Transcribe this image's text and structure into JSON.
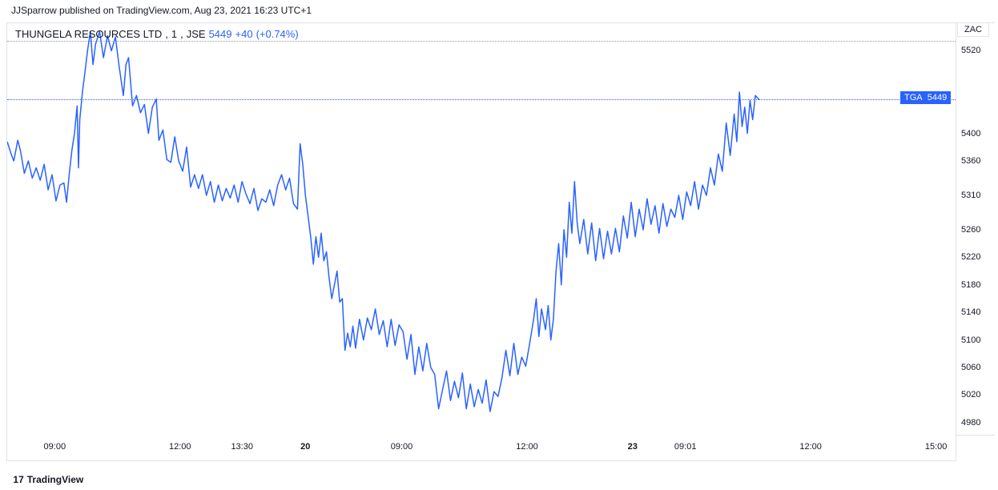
{
  "header": {
    "text": "JJSparrow published on TradingView.com, Aug 23, 2021 16:23 UTC+1"
  },
  "legend": {
    "symbol": "THUNGELA RESOURCES LTD",
    "interval": "1",
    "exchange": "JSE",
    "price": "5449",
    "change": "+40",
    "change_pct": "(+0.74%)"
  },
  "currency_label": "ZAC",
  "price_tag": {
    "ticker": "TGA",
    "value": "5449"
  },
  "attribution": {
    "brand": "TradingView"
  },
  "chart": {
    "type": "line",
    "line_color": "#2962ff",
    "line_width": 1.5,
    "background_color": "#ffffff",
    "border_color": "#e0e3eb",
    "dotted_color": "#9598a1",
    "price_line_color": "#2962ff",
    "ylim": [
      4960,
      5560
    ],
    "xlim": [
      0,
      570
    ],
    "current_price": 5449,
    "y_ticks": [
      4980,
      5020,
      5060,
      5100,
      5140,
      5180,
      5220,
      5260,
      5310,
      5360,
      5400,
      5449,
      5520
    ],
    "x_ticks": [
      {
        "pos": 36,
        "label": "09:00",
        "bold": false
      },
      {
        "pos": 131,
        "label": "12:00",
        "bold": false
      },
      {
        "pos": 178,
        "label": "13:30",
        "bold": false
      },
      {
        "pos": 226,
        "label": "20",
        "bold": true
      },
      {
        "pos": 299,
        "label": "09:00",
        "bold": false
      },
      {
        "pos": 394,
        "label": "12:00",
        "bold": false
      },
      {
        "pos": 474,
        "label": "23",
        "bold": true
      },
      {
        "pos": 514,
        "label": "09:01",
        "bold": false
      },
      {
        "pos": 609,
        "label": "12:00",
        "bold": false
      },
      {
        "pos": 704,
        "label": "15:00",
        "bold": false
      }
    ],
    "series": [
      [
        0,
        5388
      ],
      [
        3,
        5370
      ],
      [
        5,
        5360
      ],
      [
        8,
        5390
      ],
      [
        10,
        5375
      ],
      [
        13,
        5342
      ],
      [
        16,
        5360
      ],
      [
        19,
        5335
      ],
      [
        22,
        5350
      ],
      [
        25,
        5332
      ],
      [
        28,
        5355
      ],
      [
        31,
        5318
      ],
      [
        34,
        5340
      ],
      [
        37,
        5302
      ],
      [
        40,
        5325
      ],
      [
        43,
        5328
      ],
      [
        45,
        5300
      ],
      [
        47,
        5340
      ],
      [
        49,
        5375
      ],
      [
        51,
        5400
      ],
      [
        53,
        5440
      ],
      [
        54,
        5350
      ],
      [
        55,
        5420
      ],
      [
        57,
        5460
      ],
      [
        59,
        5490
      ],
      [
        61,
        5522
      ],
      [
        63,
        5548
      ],
      [
        65,
        5500
      ],
      [
        67,
        5530
      ],
      [
        70,
        5548
      ],
      [
        73,
        5510
      ],
      [
        76,
        5542
      ],
      [
        79,
        5520
      ],
      [
        82,
        5540
      ],
      [
        85,
        5495
      ],
      [
        88,
        5455
      ],
      [
        90,
        5500
      ],
      [
        92,
        5510
      ],
      [
        95,
        5440
      ],
      [
        98,
        5455
      ],
      [
        101,
        5430
      ],
      [
        104,
        5442
      ],
      [
        107,
        5400
      ],
      [
        110,
        5438
      ],
      [
        113,
        5450
      ],
      [
        115,
        5390
      ],
      [
        118,
        5405
      ],
      [
        121,
        5362
      ],
      [
        124,
        5358
      ],
      [
        127,
        5395
      ],
      [
        130,
        5360
      ],
      [
        133,
        5345
      ],
      [
        136,
        5380
      ],
      [
        139,
        5322
      ],
      [
        142,
        5340
      ],
      [
        145,
        5320
      ],
      [
        148,
        5340
      ],
      [
        151,
        5310
      ],
      [
        154,
        5330
      ],
      [
        157,
        5300
      ],
      [
        160,
        5325
      ],
      [
        163,
        5302
      ],
      [
        166,
        5320
      ],
      [
        169,
        5306
      ],
      [
        172,
        5325
      ],
      [
        175,
        5300
      ],
      [
        178,
        5330
      ],
      [
        181,
        5312
      ],
      [
        184,
        5298
      ],
      [
        187,
        5320
      ],
      [
        190,
        5288
      ],
      [
        193,
        5305
      ],
      [
        196,
        5300
      ],
      [
        199,
        5318
      ],
      [
        202,
        5295
      ],
      [
        205,
        5325
      ],
      [
        208,
        5340
      ],
      [
        211,
        5318
      ],
      [
        214,
        5335
      ],
      [
        217,
        5298
      ],
      [
        220,
        5290
      ],
      [
        222,
        5385
      ],
      [
        224,
        5355
      ],
      [
        226,
        5310
      ],
      [
        228,
        5280
      ],
      [
        230,
        5250
      ],
      [
        232,
        5210
      ],
      [
        234,
        5250
      ],
      [
        236,
        5220
      ],
      [
        238,
        5255
      ],
      [
        240,
        5215
      ],
      [
        242,
        5228
      ],
      [
        244,
        5190
      ],
      [
        246,
        5160
      ],
      [
        248,
        5180
      ],
      [
        250,
        5200
      ],
      [
        252,
        5155
      ],
      [
        254,
        5160
      ],
      [
        256,
        5085
      ],
      [
        258,
        5110
      ],
      [
        260,
        5090
      ],
      [
        262,
        5120
      ],
      [
        264,
        5088
      ],
      [
        267,
        5130
      ],
      [
        270,
        5100
      ],
      [
        273,
        5132
      ],
      [
        276,
        5115
      ],
      [
        279,
        5145
      ],
      [
        282,
        5108
      ],
      [
        285,
        5128
      ],
      [
        288,
        5090
      ],
      [
        291,
        5130
      ],
      [
        294,
        5092
      ],
      [
        297,
        5122
      ],
      [
        300,
        5112
      ],
      [
        303,
        5072
      ],
      [
        306,
        5108
      ],
      [
        309,
        5050
      ],
      [
        312,
        5090
      ],
      [
        315,
        5055
      ],
      [
        318,
        5095
      ],
      [
        321,
        5060
      ],
      [
        324,
        5050
      ],
      [
        327,
        5000
      ],
      [
        330,
        5028
      ],
      [
        333,
        5055
      ],
      [
        336,
        5012
      ],
      [
        339,
        5040
      ],
      [
        342,
        5016
      ],
      [
        345,
        5052
      ],
      [
        348,
        5000
      ],
      [
        351,
        5036
      ],
      [
        354,
        5003
      ],
      [
        357,
        5028
      ],
      [
        360,
        5008
      ],
      [
        363,
        5042
      ],
      [
        366,
        4996
      ],
      [
        369,
        5025
      ],
      [
        372,
        5018
      ],
      [
        375,
        5045
      ],
      [
        378,
        5085
      ],
      [
        381,
        5048
      ],
      [
        384,
        5095
      ],
      [
        387,
        5050
      ],
      [
        390,
        5075
      ],
      [
        393,
        5062
      ],
      [
        396,
        5095
      ],
      [
        399,
        5130
      ],
      [
        401,
        5160
      ],
      [
        403,
        5105
      ],
      [
        405,
        5145
      ],
      [
        408,
        5115
      ],
      [
        410,
        5150
      ],
      [
        412,
        5100
      ],
      [
        414,
        5130
      ],
      [
        416,
        5200
      ],
      [
        418,
        5240
      ],
      [
        420,
        5180
      ],
      [
        422,
        5260
      ],
      [
        424,
        5220
      ],
      [
        426,
        5300
      ],
      [
        428,
        5255
      ],
      [
        430,
        5330
      ],
      [
        432,
        5270
      ],
      [
        434,
        5240
      ],
      [
        437,
        5275
      ],
      [
        440,
        5225
      ],
      [
        443,
        5270
      ],
      [
        446,
        5215
      ],
      [
        449,
        5262
      ],
      [
        452,
        5218
      ],
      [
        455,
        5258
      ],
      [
        458,
        5225
      ],
      [
        461,
        5262
      ],
      [
        464,
        5228
      ],
      [
        467,
        5280
      ],
      [
        470,
        5248
      ],
      [
        473,
        5300
      ],
      [
        476,
        5250
      ],
      [
        479,
        5290
      ],
      [
        482,
        5260
      ],
      [
        485,
        5305
      ],
      [
        488,
        5268
      ],
      [
        491,
        5295
      ],
      [
        494,
        5255
      ],
      [
        497,
        5298
      ],
      [
        500,
        5265
      ],
      [
        503,
        5290
      ],
      [
        506,
        5278
      ],
      [
        509,
        5310
      ],
      [
        512,
        5275
      ],
      [
        515,
        5315
      ],
      [
        518,
        5295
      ],
      [
        521,
        5330
      ],
      [
        524,
        5290
      ],
      [
        527,
        5325
      ],
      [
        530,
        5310
      ],
      [
        533,
        5350
      ],
      [
        536,
        5325
      ],
      [
        539,
        5370
      ],
      [
        542,
        5345
      ],
      [
        545,
        5415
      ],
      [
        548,
        5368
      ],
      [
        551,
        5428
      ],
      [
        553,
        5388
      ],
      [
        555,
        5460
      ],
      [
        557,
        5410
      ],
      [
        559,
        5438
      ],
      [
        561,
        5400
      ],
      [
        563,
        5448
      ],
      [
        565,
        5420
      ],
      [
        567,
        5455
      ],
      [
        570,
        5449
      ]
    ]
  }
}
